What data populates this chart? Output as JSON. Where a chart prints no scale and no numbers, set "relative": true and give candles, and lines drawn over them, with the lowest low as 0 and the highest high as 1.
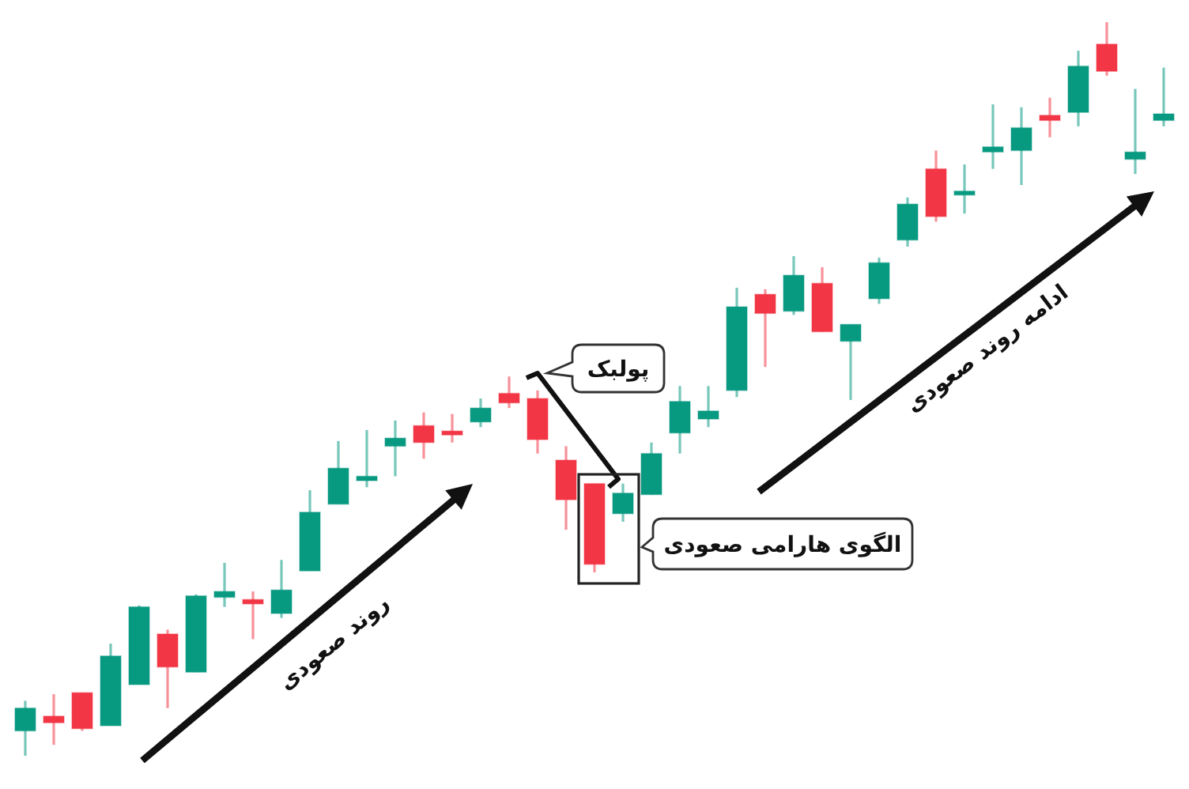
{
  "chart_data": {
    "type": "candlestick",
    "relative": true,
    "categories": [
      null,
      null,
      null,
      null,
      null,
      null,
      null,
      null,
      null,
      null,
      null,
      null,
      null,
      null,
      null,
      null,
      null,
      null,
      null,
      null,
      null,
      null,
      null,
      null,
      null,
      null,
      null,
      null,
      null,
      null,
      null,
      null,
      null,
      null,
      null,
      null,
      null,
      null,
      null,
      null,
      null
    ],
    "ohlc": [
      [
        0.034,
        0.075,
        0,
        0.065
      ],
      [
        0.054,
        0.084,
        0.015,
        0.045
      ],
      [
        0.086,
        0.086,
        0.034,
        0.037
      ],
      [
        0.041,
        0.153,
        0.041,
        0.136
      ],
      [
        0.097,
        0.205,
        0.097,
        0.203
      ],
      [
        0.166,
        0.172,
        0.065,
        0.121
      ],
      [
        0.114,
        0.22,
        0.114,
        0.218
      ],
      [
        0.216,
        0.263,
        0.203,
        0.224
      ],
      [
        0.213,
        0.224,
        0.159,
        0.207
      ],
      [
        0.194,
        0.267,
        0.188,
        0.226
      ],
      [
        0.252,
        0.362,
        0.252,
        0.332
      ],
      [
        0.343,
        0.429,
        0.343,
        0.392
      ],
      [
        0.375,
        0.444,
        0.366,
        0.381
      ],
      [
        0.422,
        0.457,
        0.381,
        0.433
      ],
      [
        0.45,
        0.468,
        0.405,
        0.427
      ],
      [
        0.442,
        0.466,
        0.427,
        0.438
      ],
      [
        0.455,
        0.487,
        0.448,
        0.474
      ],
      [
        0.494,
        0.517,
        0.474,
        0.481
      ],
      [
        0.487,
        0.498,
        0.412,
        0.431
      ],
      [
        0.403,
        0.422,
        0.308,
        0.349
      ],
      [
        0.371,
        0.371,
        0.25,
        0.261
      ],
      [
        0.33,
        0.371,
        0.319,
        0.358
      ],
      [
        0.356,
        0.427,
        0.356,
        0.412
      ],
      [
        0.44,
        0.504,
        0.412,
        0.483
      ],
      [
        0.459,
        0.504,
        0.448,
        0.47
      ],
      [
        0.498,
        0.638,
        0.489,
        0.612
      ],
      [
        0.629,
        0.636,
        0.53,
        0.603
      ],
      [
        0.606,
        0.681,
        0.601,
        0.655
      ],
      [
        0.644,
        0.666,
        0.578,
        0.578
      ],
      [
        0.565,
        0.588,
        0.485,
        0.588
      ],
      [
        0.623,
        0.679,
        0.616,
        0.672
      ],
      [
        0.703,
        0.761,
        0.694,
        0.752
      ],
      [
        0.8,
        0.825,
        0.728,
        0.735
      ],
      [
        0.765,
        0.806,
        0.739,
        0.769
      ],
      [
        0.823,
        0.888,
        0.8,
        0.83
      ],
      [
        0.825,
        0.884,
        0.778,
        0.856
      ],
      [
        0.873,
        0.897,
        0.843,
        0.866
      ],
      [
        0.877,
        0.961,
        0.858,
        0.94
      ],
      [
        0.97,
        1,
        0.927,
        0.933
      ],
      [
        0.813,
        0.909,
        0.793,
        0.823
      ],
      [
        0.866,
        0.938,
        0.858,
        0.875
      ]
    ],
    "colors": [
      "#089981",
      "#f23645",
      "#f23645",
      "#089981",
      "#089981",
      "#f23645",
      "#089981",
      "#089981",
      "#f23645",
      "#089981",
      "#089981",
      "#089981",
      "#089981",
      "#089981",
      "#f23645",
      "#f23645",
      "#089981",
      "#f23645",
      "#f23645",
      "#f23645",
      "#f23645",
      "#089981",
      "#089981",
      "#089981",
      "#089981",
      "#089981",
      "#f23645",
      "#089981",
      "#f23645",
      "#089981",
      "#089981",
      "#089981",
      "#f23645",
      "#089981",
      "#089981",
      "#089981",
      "#f23645",
      "#089981",
      "#f23645",
      "#089981",
      "#089981"
    ],
    "annotations": [
      "پولبک",
      "الگوی هارامی صعودی",
      "روند صعودی",
      "ادامه روند صعودی"
    ]
  }
}
